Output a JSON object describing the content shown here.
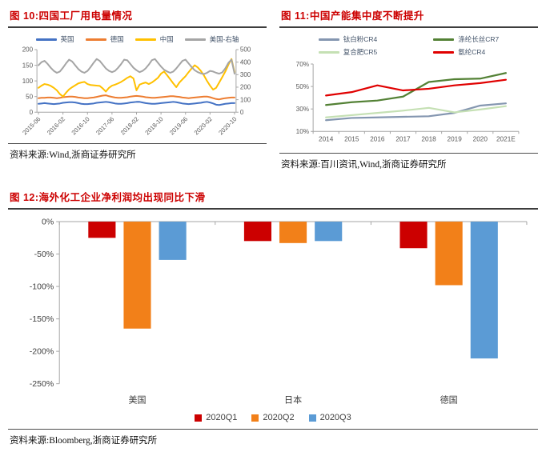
{
  "page": {
    "background": "#ffffff",
    "title_color": "#cc0000"
  },
  "chart_data": [
    {
      "id": "fig10",
      "type": "line",
      "title": "图 10:四国工厂用电量情况",
      "source": "资料来源:Wind,浙商证券研究所",
      "legend_position": "top",
      "grid": false,
      "dual_axis": true,
      "x_tick_labels": [
        "2015-06",
        "2016-02",
        "2016-10",
        "2017-06",
        "2018-02",
        "2018-10",
        "2019-06",
        "2020-02",
        "2020-10"
      ],
      "x_tick_every": 8,
      "left_axis": {
        "min": 0,
        "max": 200,
        "ticks": [
          0,
          50,
          100,
          150,
          200
        ]
      },
      "right_axis": {
        "min": 0,
        "max": 500,
        "ticks": [
          0,
          100,
          200,
          300,
          400,
          500
        ]
      },
      "series": [
        {
          "name": "英国",
          "axis": "left",
          "color": "#4472C4",
          "values": [
            27,
            28,
            29,
            28,
            27,
            26,
            27,
            28,
            30,
            31,
            32,
            32,
            31,
            29,
            27,
            26,
            26,
            27,
            28,
            30,
            31,
            32,
            33,
            32,
            30,
            28,
            27,
            27,
            28,
            29,
            31,
            32,
            33,
            33,
            31,
            29,
            28,
            27,
            27,
            28,
            29,
            30,
            31,
            32,
            33,
            32,
            30,
            28,
            27,
            26,
            27,
            28,
            29,
            30,
            32,
            33,
            31,
            28,
            24,
            23,
            25,
            27,
            28,
            29,
            29
          ]
        },
        {
          "name": "德国",
          "axis": "left",
          "color": "#ED7D31",
          "values": [
            45,
            46,
            46,
            47,
            47,
            46,
            45,
            46,
            48,
            49,
            50,
            50,
            49,
            47,
            46,
            45,
            45,
            46,
            47,
            49,
            51,
            53,
            54,
            51,
            49,
            47,
            46,
            46,
            47,
            48,
            50,
            51,
            52,
            51,
            50,
            48,
            47,
            46,
            46,
            47,
            48,
            49,
            50,
            51,
            51,
            50,
            49,
            47,
            46,
            45,
            46,
            47,
            48,
            49,
            50,
            50,
            48,
            45,
            42,
            41,
            43,
            45,
            46,
            47,
            47
          ]
        },
        {
          "name": "中国",
          "axis": "left",
          "color": "#FFC000",
          "values": [
            78,
            85,
            90,
            88,
            84,
            78,
            70,
            58,
            50,
            62,
            73,
            80,
            86,
            92,
            95,
            97,
            90,
            87,
            86,
            85,
            84,
            76,
            66,
            78,
            85,
            88,
            92,
            97,
            103,
            110,
            115,
            108,
            70,
            88,
            92,
            95,
            90,
            95,
            102,
            110,
            123,
            130,
            118,
            105,
            92,
            80,
            95,
            105,
            115,
            128,
            140,
            150,
            143,
            132,
            118,
            100,
            85,
            72,
            78,
            95,
            112,
            130,
            152,
            170,
            128
          ]
        },
        {
          "name": "美国-右轴",
          "axis": "right",
          "color": "#A5A5A5",
          "values": [
            375,
            400,
            410,
            385,
            355,
            330,
            315,
            325,
            355,
            390,
            420,
            405,
            375,
            345,
            325,
            315,
            330,
            360,
            395,
            425,
            410,
            380,
            350,
            330,
            320,
            330,
            355,
            385,
            420,
            415,
            385,
            355,
            335,
            320,
            330,
            350,
            380,
            415,
            425,
            395,
            365,
            340,
            325,
            315,
            325,
            350,
            380,
            410,
            420,
            390,
            360,
            335,
            320,
            310,
            305,
            315,
            330,
            325,
            315,
            308,
            318,
            350,
            395,
            420,
            308
          ]
        }
      ]
    },
    {
      "id": "fig11",
      "type": "line",
      "title": "图 11:中国产能集中度不断提升",
      "source": "资料来源:百川资讯,Wind,浙商证券研究所",
      "legend_position": "top",
      "grid": false,
      "x_labels": [
        "2014",
        "2015",
        "2016",
        "2017",
        "2018",
        "2019",
        "2020",
        "2021E"
      ],
      "y_axis": {
        "min": 10,
        "max": 70,
        "ticks": [
          10,
          30,
          50,
          70
        ],
        "suffix": "%"
      },
      "series": [
        {
          "name": "钛白粉CR4",
          "color": "#8496B0",
          "values": [
            20,
            22,
            22.5,
            23,
            23.5,
            26.5,
            33,
            35
          ]
        },
        {
          "name": "复合肥CR5",
          "color": "#C5E0B4",
          "values": [
            22.5,
            24.5,
            26.5,
            28.5,
            31,
            27,
            29.5,
            32.5
          ]
        },
        {
          "name": "涤纶长丝CR7",
          "color": "#538135",
          "values": [
            33.5,
            36,
            37.5,
            41,
            54,
            56.5,
            57,
            62
          ]
        },
        {
          "name": "氨纶CR4",
          "color": "#E00000",
          "values": [
            42,
            45,
            51,
            46.5,
            48,
            51,
            53,
            56
          ]
        }
      ]
    },
    {
      "id": "fig12",
      "type": "bar",
      "title": "图 12:海外化工企业净利润均出现同比下滑",
      "source": "资料来源:Bloomberg,浙商证券研究所",
      "legend_position": "bottom",
      "grid": false,
      "categories": [
        "美国",
        "日本",
        "德国"
      ],
      "y_axis": {
        "min": -250,
        "max": 0,
        "ticks": [
          0,
          -50,
          -100,
          -150,
          -200,
          -250
        ],
        "suffix": "%"
      },
      "series": [
        {
          "name": "2020Q1",
          "color": "#CC0000",
          "values": [
            -25,
            -30,
            -41
          ]
        },
        {
          "name": "2020Q2",
          "color": "#F28019",
          "values": [
            -165,
            -33,
            -98
          ]
        },
        {
          "name": "2020Q3",
          "color": "#5B9BD5",
          "values": [
            -59,
            -30,
            -211
          ]
        }
      ]
    }
  ]
}
